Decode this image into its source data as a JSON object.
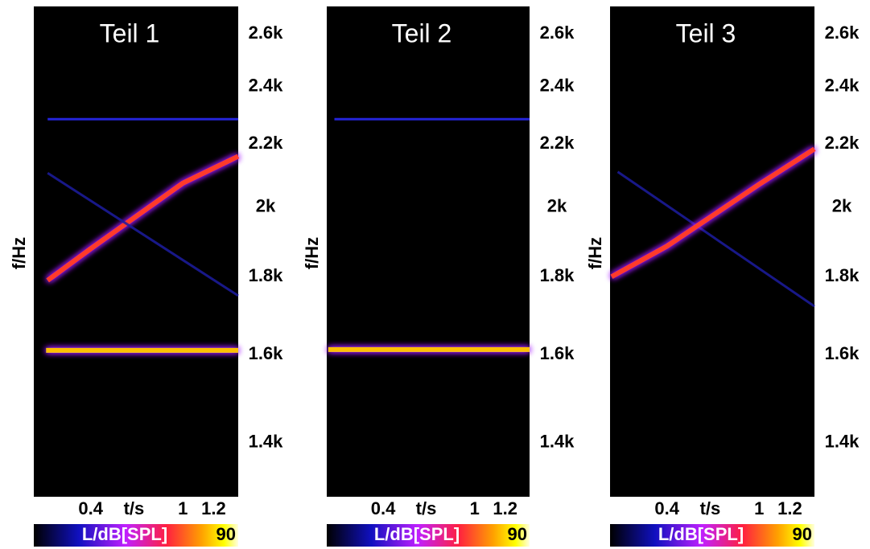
{
  "chart_data": [
    {
      "type": "spectrogram",
      "title": "Teil 1",
      "ylabel": "f/Hz",
      "xlabel": "t/s",
      "background": "#000000",
      "xlim": [
        0.03,
        1.36
      ],
      "xticks": [
        0.4,
        1,
        1.2
      ],
      "ylim": [
        1290,
        2710
      ],
      "yscale": "log",
      "yticks": [
        {
          "value": 1400,
          "label": "1.4k"
        },
        {
          "value": 1600,
          "label": "1.6k"
        },
        {
          "value": 1800,
          "label": "1.8k"
        },
        {
          "value": 2000,
          "label": "2k"
        },
        {
          "value": 2200,
          "label": "2.2k"
        },
        {
          "value": 2400,
          "label": "2.4k"
        },
        {
          "value": 2600,
          "label": "2.6k"
        }
      ],
      "series": [
        {
          "color": "#2a2aff",
          "x": [
            0.12,
            1.36
          ],
          "values": [
            2285,
            2285
          ]
        },
        {
          "color": "#ff3a2a",
          "x": [
            0.12,
            0.4,
            1.0,
            1.36
          ],
          "values": [
            1790,
            1878,
            2074,
            2160
          ]
        },
        {
          "color": "#1c1ca0",
          "x": [
            0.12,
            1.36
          ],
          "values": [
            2106,
            1749
          ]
        },
        {
          "color": "#ffc000",
          "x": [
            0.11,
            1.36
          ],
          "values": [
            1610,
            1610
          ]
        }
      ],
      "colorbar": {
        "label": "L/dB[SPL]",
        "max": 90
      }
    },
    {
      "type": "spectrogram",
      "title": "Teil 2",
      "ylabel": "f/Hz",
      "xlabel": "t/s",
      "background": "#000000",
      "xlim": [
        0.03,
        1.36
      ],
      "xticks": [
        0.4,
        1,
        1.2
      ],
      "ylim": [
        1290,
        2710
      ],
      "yscale": "log",
      "yticks": [
        {
          "value": 1400,
          "label": "1.4k"
        },
        {
          "value": 1600,
          "label": "1.6k"
        },
        {
          "value": 1800,
          "label": "1.8k"
        },
        {
          "value": 2000,
          "label": "2k"
        },
        {
          "value": 2200,
          "label": "2.2k"
        },
        {
          "value": 2400,
          "label": "2.4k"
        },
        {
          "value": 2600,
          "label": "2.6k"
        }
      ],
      "series": [
        {
          "color": "#2a2aff",
          "x": [
            0.08,
            1.36
          ],
          "values": [
            2285,
            2285
          ]
        },
        {
          "color": "#ffc000",
          "x": [
            0.04,
            1.36
          ],
          "values": [
            1612,
            1612
          ]
        }
      ],
      "colorbar": {
        "label": "L/dB[SPL]",
        "max": 90
      }
    },
    {
      "type": "spectrogram",
      "title": "Teil 3",
      "ylabel": "f/Hz",
      "xlabel": "t/s",
      "background": "#000000",
      "xlim": [
        0.03,
        1.36
      ],
      "xticks": [
        0.4,
        1,
        1.2
      ],
      "ylim": [
        1290,
        2710
      ],
      "yscale": "log",
      "yticks": [
        {
          "value": 1400,
          "label": "1.4k"
        },
        {
          "value": 1600,
          "label": "1.6k"
        },
        {
          "value": 1800,
          "label": "1.8k"
        },
        {
          "value": 2000,
          "label": "2k"
        },
        {
          "value": 2200,
          "label": "2.2k"
        },
        {
          "value": 2400,
          "label": "2.4k"
        },
        {
          "value": 2600,
          "label": "2.6k"
        }
      ],
      "series": [
        {
          "color": "#1c1ca0",
          "x": [
            0.08,
            1.36
          ],
          "values": [
            2110,
            1721
          ]
        },
        {
          "color": "#ff3a2a",
          "x": [
            0.04,
            0.4,
            1.0,
            1.36
          ],
          "values": [
            1800,
            1885,
            2070,
            2184
          ]
        }
      ],
      "colorbar": {
        "label": "L/dB[SPL]",
        "max": 90
      }
    }
  ]
}
